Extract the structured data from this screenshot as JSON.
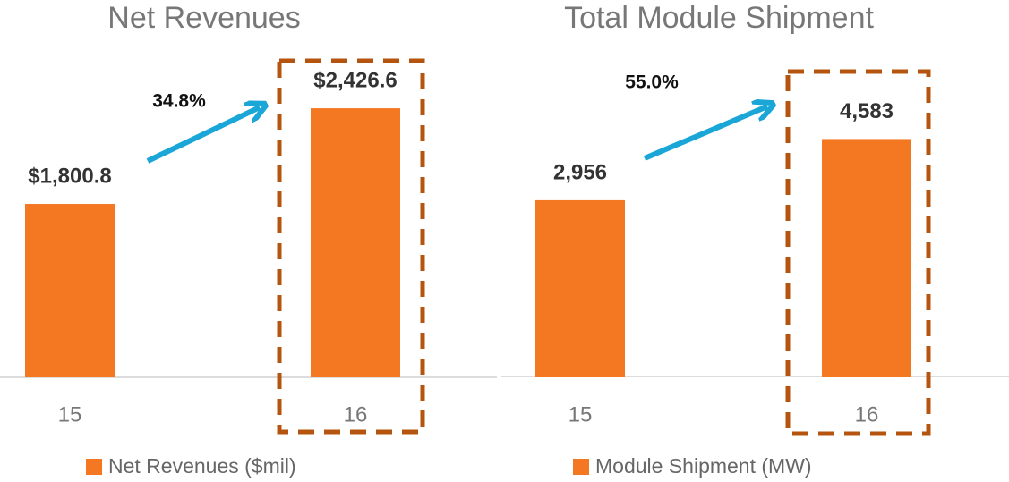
{
  "chart_data": [
    {
      "type": "bar",
      "title": "Net Revenues",
      "categories": [
        "15",
        "16"
      ],
      "series": [
        {
          "name": "Net Revenues ($mil)",
          "color": "#f47721",
          "values": [
            1800.8,
            2426.6
          ],
          "value_labels": [
            "$1,800.8",
            "$2,426.6"
          ]
        }
      ],
      "ylim": [
        666,
        2784
      ],
      "annotation": "34.8%"
    },
    {
      "type": "bar",
      "title": "Total Module Shipment",
      "categories": [
        "15",
        "16"
      ],
      "series": [
        {
          "name": "Module Shipment (MW)",
          "color": "#f47721",
          "values": [
            2956,
            4583
          ],
          "value_labels": [
            "2,956",
            "4,583"
          ]
        }
      ],
      "ylim": [
        -1750,
        6850
      ],
      "annotation": "55.0%"
    }
  ]
}
